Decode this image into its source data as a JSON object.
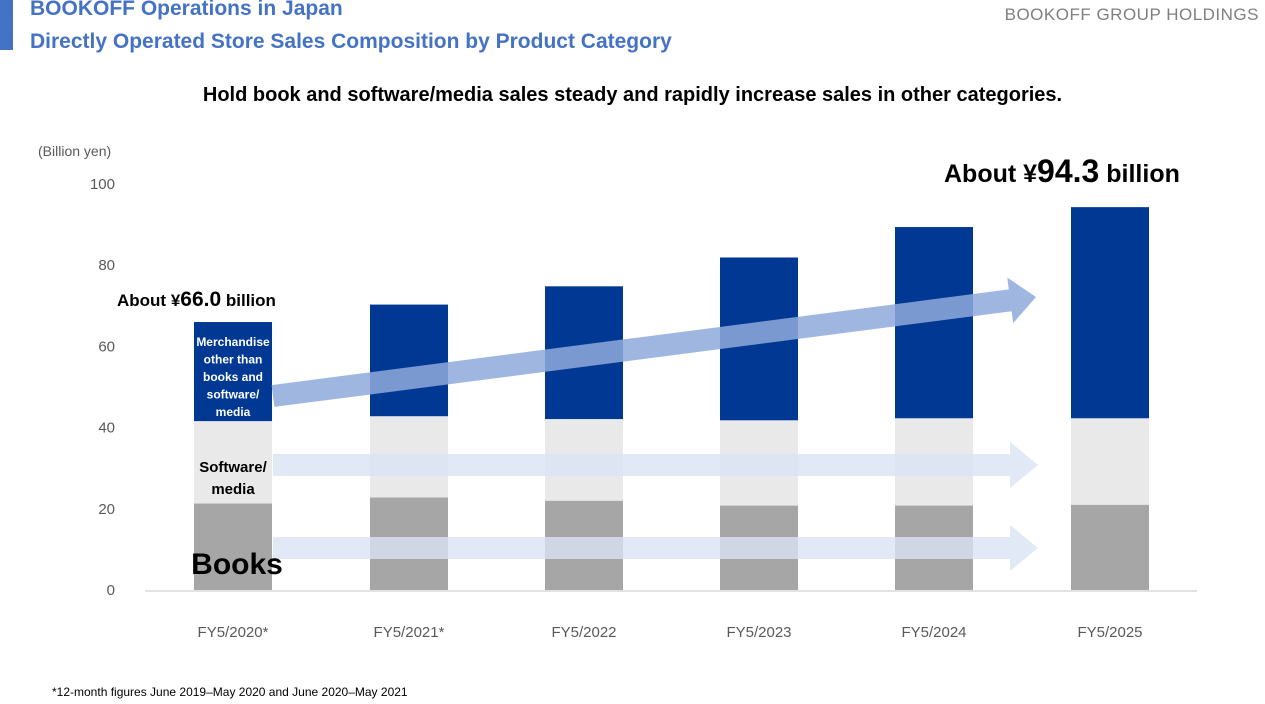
{
  "header": {
    "title_line1": "BOOKOFF Operations in Japan",
    "title_line2": "Directly Operated Store Sales Composition by Product Category",
    "brand": "BOOKOFF GROUP HOLDINGS",
    "headline": "Hold book and software/media sales steady and rapidly increase sales in other categories."
  },
  "footnote": "*12-month figures June 2019–May 2020 and June 2020–May 2021",
  "colors": {
    "accent": "#4472c4",
    "merchandise": "#003894",
    "software_media": "#e9e9e9",
    "books": "#a6a6a6",
    "growth_arrow": "#8eaadb",
    "steady_arrow": "#d9e4f5"
  },
  "chart_data": {
    "type": "bar",
    "stacked": true,
    "title": "",
    "ylabel": "(Billion yen)",
    "xlabel": "",
    "ylim": [
      0,
      100
    ],
    "yticks": [
      0,
      20,
      40,
      60,
      80,
      100
    ],
    "grid": false,
    "categories": [
      "FY5/2020*",
      "FY5/2021*",
      "FY5/2022",
      "FY5/2023",
      "FY5/2024",
      "FY5/2025"
    ],
    "series": [
      {
        "name": "Books",
        "values": [
          21.3,
          22.8,
          22.0,
          20.8,
          20.8,
          21.0
        ]
      },
      {
        "name": "Software/media",
        "values": [
          20.3,
          20.0,
          20.1,
          21.0,
          21.5,
          21.3
        ]
      },
      {
        "name": "Merchandise other than books and software/media",
        "values": [
          24.4,
          27.5,
          32.7,
          40.1,
          47.1,
          52.0
        ]
      }
    ],
    "totals": [
      66.0,
      70.3,
      74.8,
      81.9,
      89.4,
      94.3
    ],
    "annotations": {
      "first_total": {
        "prefix": "About ¥",
        "value": "66.0",
        "suffix": " billion"
      },
      "last_total": {
        "prefix": "About ¥",
        "value": "94.3",
        "suffix": " billion"
      },
      "segment_labels": {
        "merchandise": [
          "Merchandise",
          "other than",
          "books and",
          "software/",
          "media"
        ],
        "software_media": [
          "Software/",
          "media"
        ],
        "books": "Books"
      }
    }
  }
}
